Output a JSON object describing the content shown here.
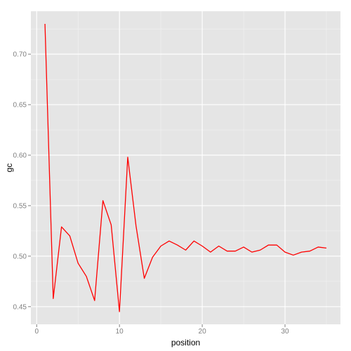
{
  "chart_data": {
    "type": "line",
    "title": "",
    "xlabel": "position",
    "ylabel": "gc",
    "xlim": [
      -0.7,
      36.7
    ],
    "ylim": [
      0.4325,
      0.7425
    ],
    "x_ticks": [
      0,
      10,
      20,
      30
    ],
    "x_tick_labels": [
      "0",
      "10",
      "20",
      "30"
    ],
    "y_ticks": [
      0.45,
      0.5,
      0.55,
      0.6,
      0.65,
      0.7
    ],
    "y_tick_labels": [
      "0.45",
      "0.50",
      "0.55",
      "0.60",
      "0.65",
      "0.70"
    ],
    "grid": true,
    "legend": "none",
    "series": [
      {
        "x": [
          1,
          2,
          3,
          4,
          5,
          6,
          7,
          8,
          9,
          10,
          11,
          12,
          13,
          14,
          15,
          16,
          17,
          18,
          19,
          20,
          21,
          22,
          23,
          24,
          25,
          26,
          27,
          28,
          29,
          30,
          31,
          32,
          33,
          34,
          35
        ],
        "values": [
          0.73,
          0.458,
          0.529,
          0.52,
          0.493,
          0.48,
          0.456,
          0.555,
          0.531,
          0.445,
          0.598,
          0.53,
          0.478,
          0.499,
          0.51,
          0.515,
          0.511,
          0.506,
          0.515,
          0.51,
          0.504,
          0.51,
          0.505,
          0.505,
          0.509,
          0.504,
          0.506,
          0.511,
          0.511,
          0.504,
          0.501,
          0.504,
          0.505,
          0.509,
          0.508
        ],
        "color": "#ff0000"
      }
    ]
  },
  "colors": {
    "panel_background": "#e5e5e5",
    "grid_major": "#ffffff",
    "grid_minor": "#f2f2f2",
    "line": "#ff0000",
    "tick_text": "#7f7f7f",
    "tick_mark": "#7f7f7f"
  }
}
